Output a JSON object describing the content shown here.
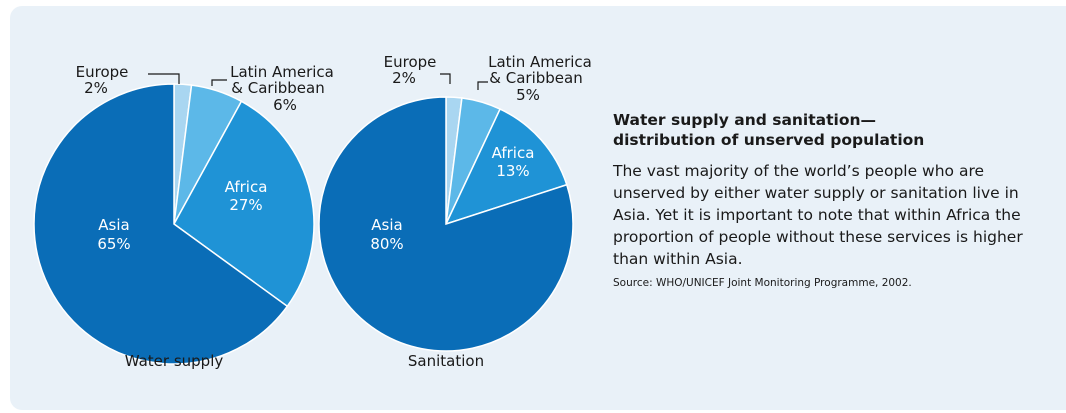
{
  "colors": {
    "asia": "#0a6db7",
    "africa": "#1f93d6",
    "latin_america": "#5cb8e8",
    "europe": "#a9d6f1",
    "background": "#e9f1f8"
  },
  "chart_data": [
    {
      "type": "pie",
      "title": "Water supply",
      "slices": [
        {
          "label": "Europe",
          "value": 2
        },
        {
          "label": "Latin America & Caribbean",
          "value": 6
        },
        {
          "label": "Africa",
          "value": 27
        },
        {
          "label": "Asia",
          "value": 65
        }
      ],
      "labels": {
        "europe": {
          "name": "Europe",
          "pct": "2%"
        },
        "latin": {
          "line1": "Latin America",
          "line2": "& Caribbean",
          "pct": "6%"
        },
        "africa": {
          "name": "Africa",
          "pct": "27%"
        },
        "asia": {
          "name": "Asia",
          "pct": "65%"
        }
      }
    },
    {
      "type": "pie",
      "title": "Sanitation",
      "slices": [
        {
          "label": "Europe",
          "value": 2
        },
        {
          "label": "Latin America & Caribbean",
          "value": 5
        },
        {
          "label": "Africa",
          "value": 13
        },
        {
          "label": "Asia",
          "value": 80
        }
      ],
      "labels": {
        "europe": {
          "name": "Europe",
          "pct": "2%"
        },
        "latin": {
          "line1": "Latin America",
          "line2": "& Caribbean",
          "pct": "5%"
        },
        "africa": {
          "name": "Africa",
          "pct": "13%"
        },
        "asia": {
          "name": "Asia",
          "pct": "80%"
        }
      }
    }
  ],
  "sidebar": {
    "title": "Water supply and sanitation—\ndistribution of unserved population",
    "body": "The vast majority of the world’s people who are unserved by either water supply or sanitation live in Asia. Yet it is important to note that within Africa the proportion of people without these services is higher than within Asia.",
    "source": "Source: WHO/UNICEF Joint Monitoring Programme, 2002."
  }
}
